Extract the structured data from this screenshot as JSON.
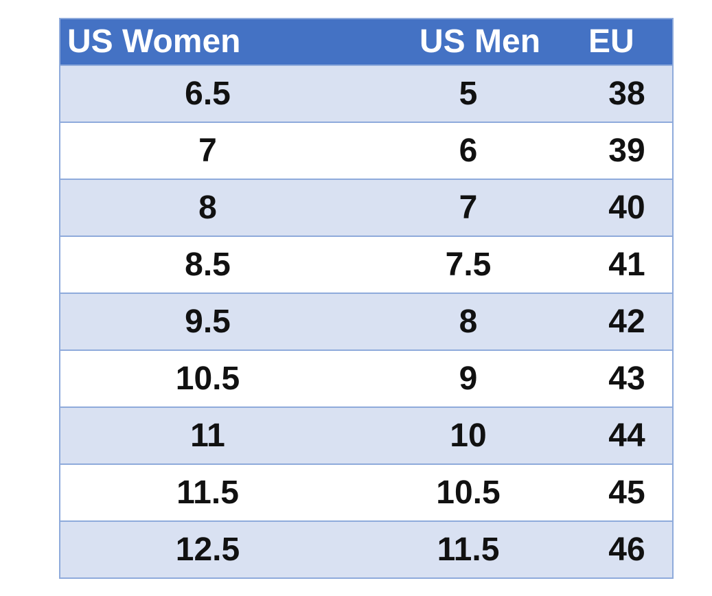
{
  "table": {
    "headers": [
      "US Women",
      "US Men",
      "EU"
    ],
    "rows": [
      [
        "6.5",
        "5",
        "38"
      ],
      [
        "7",
        "6",
        "39"
      ],
      [
        "8",
        "7",
        "40"
      ],
      [
        "8.5",
        "7.5",
        "41"
      ],
      [
        "9.5",
        "8",
        "42"
      ],
      [
        "10.5",
        "9",
        "43"
      ],
      [
        "11",
        "10",
        "44"
      ],
      [
        "11.5",
        "10.5",
        "45"
      ],
      [
        "12.5",
        "11.5",
        "46"
      ]
    ]
  },
  "colors": {
    "header_bg": "#4472c4",
    "header_text": "#ffffff",
    "band_bg": "#d9e1f2",
    "row_bg": "#ffffff",
    "border": "#8eaadb"
  }
}
